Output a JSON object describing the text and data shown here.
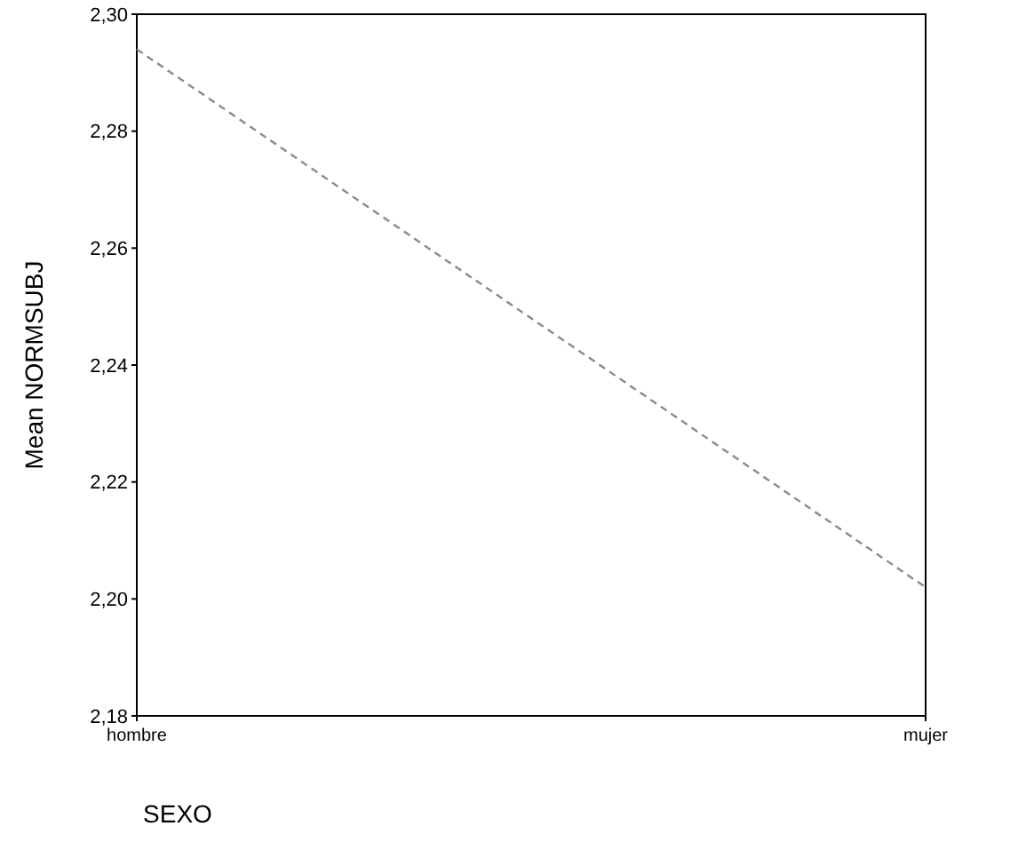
{
  "chart_data": {
    "type": "line",
    "categories": [
      "hombre",
      "mujer"
    ],
    "xlabel": "SEXO",
    "ylabel": "Mean NORMSUBJ",
    "series": [
      {
        "color": "#8a8a8a",
        "values": [
          2.294,
          2.202
        ]
      }
    ],
    "ylim": [
      2.18,
      2.3
    ],
    "yticks": [
      {
        "value": 2.18,
        "label": "2,18"
      },
      {
        "value": 2.2,
        "label": "2,20"
      },
      {
        "value": 2.22,
        "label": "2,22"
      },
      {
        "value": 2.24,
        "label": "2,24"
      },
      {
        "value": 2.26,
        "label": "2,26"
      },
      {
        "value": 2.28,
        "label": "2,28"
      },
      {
        "value": 2.3,
        "label": "2,30"
      }
    ],
    "marker": "none",
    "line_style": "dashed"
  }
}
